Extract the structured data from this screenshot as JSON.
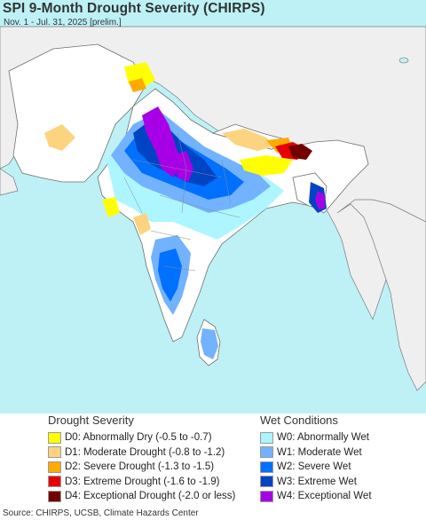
{
  "map": {
    "title": "SPI 9-Month Drought Severity (CHIRPS)",
    "subtitle": "Nov. 1 - Jul. 31, 2025 [prelim.]",
    "colors": {
      "ocean": "#bdf1f6",
      "land_normal": "#ffffff",
      "outside_region": "#efefef",
      "border": "#6e6e6e"
    }
  },
  "legend": {
    "drought": {
      "heading": "Drought Severity",
      "items": [
        {
          "label": "D0: Abnormally Dry (-0.5 to -0.7)",
          "color": "#ffff00"
        },
        {
          "label": "D1: Moderate Drought (-0.8 to -1.2)",
          "color": "#fcd37f"
        },
        {
          "label": "D2: Severe Drought (-1.3 to -1.5)",
          "color": "#ffaa00"
        },
        {
          "label": "D3: Extreme Drought (-1.6 to -1.9)",
          "color": "#e60000"
        },
        {
          "label": "D4: Exceptional Drought (-2.0 or less)",
          "color": "#730000"
        }
      ]
    },
    "wet": {
      "heading": "Wet Conditions",
      "items": [
        {
          "label": "W0: Abnormally Wet",
          "color": "#aaf5ff"
        },
        {
          "label": "W1: Moderate Wet",
          "color": "#73b2ff"
        },
        {
          "label": "W2: Severe Wet",
          "color": "#0070ff"
        },
        {
          "label": "W3: Extreme Wet",
          "color": "#0044c4"
        },
        {
          "label": "W4: Exceptional Wet",
          "color": "#a800e6"
        }
      ]
    }
  },
  "source": "Source: CHIRPS, UCSB, Climate Hazards Center"
}
